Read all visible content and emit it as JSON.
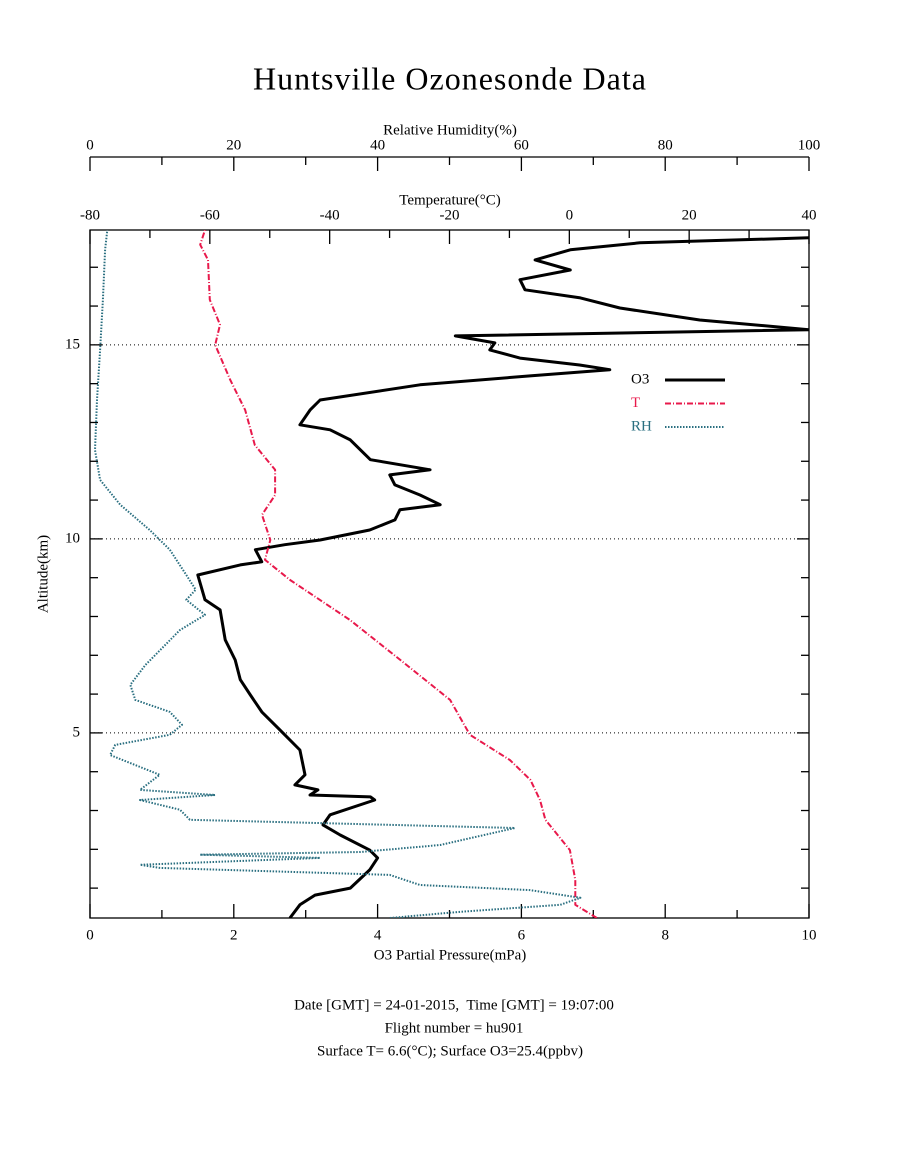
{
  "chart_data": {
    "type": "profile",
    "title": "Huntsville Ozonesonde Data",
    "ylabel": "Altitude(km)",
    "ylim": [
      0.23,
      17.96
    ],
    "yticks": [
      5,
      10,
      15
    ],
    "yminor_ticks": [
      1,
      2,
      3,
      4,
      6,
      7,
      8,
      9,
      11,
      12,
      13,
      14,
      16,
      17
    ],
    "grid": true,
    "xlabel": "O3 Partial Pressure(mPa)",
    "xlim": [
      0,
      10
    ],
    "xticks": [
      0,
      2,
      4,
      6,
      8,
      10
    ],
    "xminor_ticks": [
      1,
      3,
      5,
      7,
      9
    ],
    "x2label": "Temperature(°C)",
    "x2lim": [
      -80,
      40
    ],
    "x2ticks": [
      -80,
      -60,
      -40,
      -20,
      0,
      20,
      40
    ],
    "x2minor_ticks": [
      -70,
      -50,
      -30,
      -10,
      10,
      30
    ],
    "x3label": "Relative Humidity(%)",
    "x3lim": [
      0,
      100
    ],
    "x3ticks": [
      0,
      20,
      40,
      60,
      80,
      100
    ],
    "x3minor_ticks": [
      10,
      30,
      50,
      70,
      90
    ],
    "legend": "upper right",
    "series": [
      {
        "name": "O3",
        "color": "#000000",
        "axis": "x",
        "style": "solid",
        "altitude": [
          0.23,
          0.57,
          0.82,
          1.0,
          1.47,
          1.78,
          1.98,
          2.37,
          2.63,
          2.89,
          3.27,
          3.35,
          3.4,
          3.53,
          3.66,
          3.92,
          4.56,
          5.08,
          5.54,
          5.98,
          6.37,
          6.88,
          7.4,
          8.17,
          8.43,
          9.07,
          9.33,
          9.41,
          9.72,
          9.85,
          9.97,
          10.23,
          10.49,
          10.75,
          10.88,
          11.13,
          11.39,
          11.65,
          11.78,
          12.04,
          12.55,
          12.81,
          12.94,
          13.32,
          13.58,
          13.97,
          14.2,
          14.36,
          14.48,
          14.66,
          14.87,
          15.05,
          15.23,
          15.39,
          15.64,
          15.95,
          16.21,
          16.42,
          16.68,
          16.93,
          17.19,
          17.45,
          17.63,
          17.76
        ],
        "values": [
          2.78,
          2.92,
          3.13,
          3.62,
          3.89,
          4.0,
          3.89,
          3.48,
          3.24,
          3.34,
          3.96,
          3.9,
          3.06,
          3.17,
          2.85,
          2.99,
          2.92,
          2.64,
          2.39,
          2.23,
          2.09,
          2.02,
          1.88,
          1.81,
          1.6,
          1.5,
          2.09,
          2.39,
          2.3,
          2.71,
          3.2,
          3.89,
          4.24,
          4.31,
          4.87,
          4.59,
          4.24,
          4.17,
          4.73,
          3.9,
          3.62,
          3.34,
          2.92,
          3.06,
          3.2,
          4.59,
          6.12,
          7.23,
          6.81,
          5.98,
          5.56,
          5.63,
          5.08,
          10,
          8.48,
          7.37,
          6.82,
          6.05,
          5.98,
          6.68,
          6.19,
          6.68,
          7.65,
          10
        ]
      },
      {
        "name": "T",
        "color": "#e8194b",
        "axis": "x2",
        "style": "dashdot",
        "altitude": [
          0.23,
          0.57,
          1.21,
          1.98,
          2.76,
          3.27,
          3.79,
          4.3,
          4.95,
          5.85,
          6.88,
          7.91,
          8.94,
          9.46,
          9.97,
          10.62,
          11.13,
          11.78,
          12.42,
          13.32,
          14.1,
          15.0,
          15.52,
          16.16,
          17.19,
          17.58,
          17.96
        ],
        "values": [
          4.6,
          1.0,
          1.0,
          0.1,
          -4.0,
          -4.9,
          -6.5,
          -9.9,
          -16.6,
          -19.9,
          -28.2,
          -36.6,
          -46.6,
          -50.8,
          -49.9,
          -51.3,
          -49.1,
          -49.1,
          -52.5,
          -54.1,
          -56.6,
          -59.1,
          -58.3,
          -60.0,
          -60.3,
          -61.6,
          -60.8
        ]
      },
      {
        "name": "RH",
        "color": "#2a6f80",
        "axis": "x3",
        "style": "dotted",
        "altitude": [
          0.23,
          0.39,
          0.57,
          0.75,
          0.95,
          1.08,
          1.34,
          1.52,
          1.6,
          1.78,
          1.86,
          1.93,
          2.11,
          2.55,
          2.76,
          3.02,
          3.27,
          3.4,
          3.53,
          3.92,
          4.43,
          4.69,
          4.95,
          5.21,
          5.54,
          5.85,
          6.24,
          6.75,
          7.65,
          8.04,
          8.43,
          8.69,
          9.07,
          9.72,
          10.23,
          10.88,
          11.52,
          12.29,
          13.58,
          14.87,
          16.16,
          17.45,
          17.96
        ],
        "values": [
          41.7,
          51.5,
          65.4,
          68.2,
          61.2,
          45.9,
          41.7,
          9.7,
          6.95,
          32,
          15.3,
          37.6,
          48.7,
          59.1,
          13.9,
          12.5,
          6.95,
          17.4,
          6.95,
          9.7,
          2.8,
          3.5,
          11.1,
          12.8,
          11.1,
          6.3,
          5.6,
          7.7,
          12.5,
          16.0,
          13.4,
          14.7,
          13.4,
          11.1,
          8.3,
          4.2,
          1.4,
          0.7,
          0.97,
          1.4,
          1.8,
          2.1,
          2.4
        ]
      }
    ],
    "notes": [
      "Date [GMT] = 24-01-2015,  Time [GMT] = 19:07:00",
      "Flight number = hu901",
      "Surface T= 6.6(°C); Surface O3=25.4(ppbv)"
    ]
  }
}
